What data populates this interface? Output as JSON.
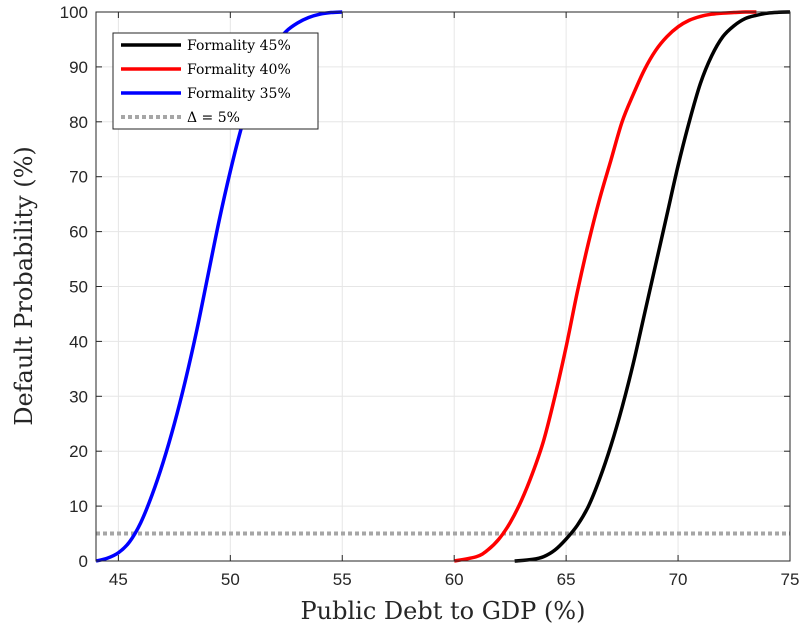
{
  "chart_data": {
    "type": "line",
    "xlabel": "Public Debt to GDP (%)",
    "ylabel": "Default Probability (%)",
    "xlim": [
      44,
      75
    ],
    "ylim": [
      0,
      100
    ],
    "x_ticks": [
      45,
      50,
      55,
      60,
      65,
      70,
      75
    ],
    "y_ticks": [
      0,
      10,
      20,
      30,
      40,
      50,
      60,
      70,
      80,
      90,
      100
    ],
    "grid": true,
    "legend_position": "top-left",
    "series": [
      {
        "name": "Formality 45%",
        "color": "#000000",
        "style": "solid",
        "x": [
          62.7,
          63.5,
          64.0,
          64.5,
          65.0,
          65.5,
          66.0,
          66.5,
          67.0,
          67.5,
          68.0,
          68.5,
          69.0,
          69.5,
          70.0,
          70.5,
          71.0,
          71.5,
          72.0,
          72.5,
          73.0,
          73.5,
          74.0,
          74.5,
          75.0
        ],
        "y": [
          0,
          0.3,
          0.8,
          2,
          4,
          6.5,
          10,
          15,
          21,
          28,
          36,
          45,
          54,
          63,
          72,
          80,
          87,
          92,
          95.5,
          97.5,
          98.8,
          99.4,
          99.8,
          99.95,
          100
        ]
      },
      {
        "name": "Formality 40%",
        "color": "#ff0000",
        "style": "solid",
        "x": [
          60.0,
          61.0,
          61.5,
          62.0,
          62.5,
          63.0,
          63.5,
          64.0,
          64.5,
          65.0,
          65.5,
          66.0,
          66.5,
          67.0,
          67.5,
          68.0,
          68.5,
          69.0,
          69.5,
          70.0,
          70.5,
          71.0,
          71.5,
          72.0,
          72.5,
          73.0,
          73.5
        ],
        "y": [
          0,
          0.8,
          2,
          4,
          7,
          11,
          16,
          22,
          30,
          39,
          49,
          58,
          66,
          73,
          80,
          85,
          89.5,
          93,
          95.5,
          97.3,
          98.5,
          99.2,
          99.6,
          99.8,
          99.9,
          100,
          100
        ]
      },
      {
        "name": "Formality 35%",
        "color": "#0000ff",
        "style": "solid",
        "x": [
          44.0,
          44.5,
          45.0,
          45.5,
          46.0,
          46.5,
          47.0,
          47.5,
          48.0,
          48.5,
          49.0,
          49.5,
          50.0,
          50.5,
          51.0,
          51.5,
          52.0,
          52.5,
          53.0,
          53.5,
          54.0,
          54.5,
          55.0
        ],
        "y": [
          0,
          0.5,
          1.5,
          3.5,
          7,
          12,
          18,
          25,
          33,
          42,
          52,
          62,
          71,
          79,
          85.5,
          90.5,
          94,
          96.5,
          98,
          99,
          99.6,
          99.9,
          100
        ]
      },
      {
        "name": "Δ = 5%",
        "color": "#a6a6a6",
        "style": "dotted",
        "x": [
          44,
          75
        ],
        "y": [
          5,
          5
        ]
      }
    ]
  }
}
